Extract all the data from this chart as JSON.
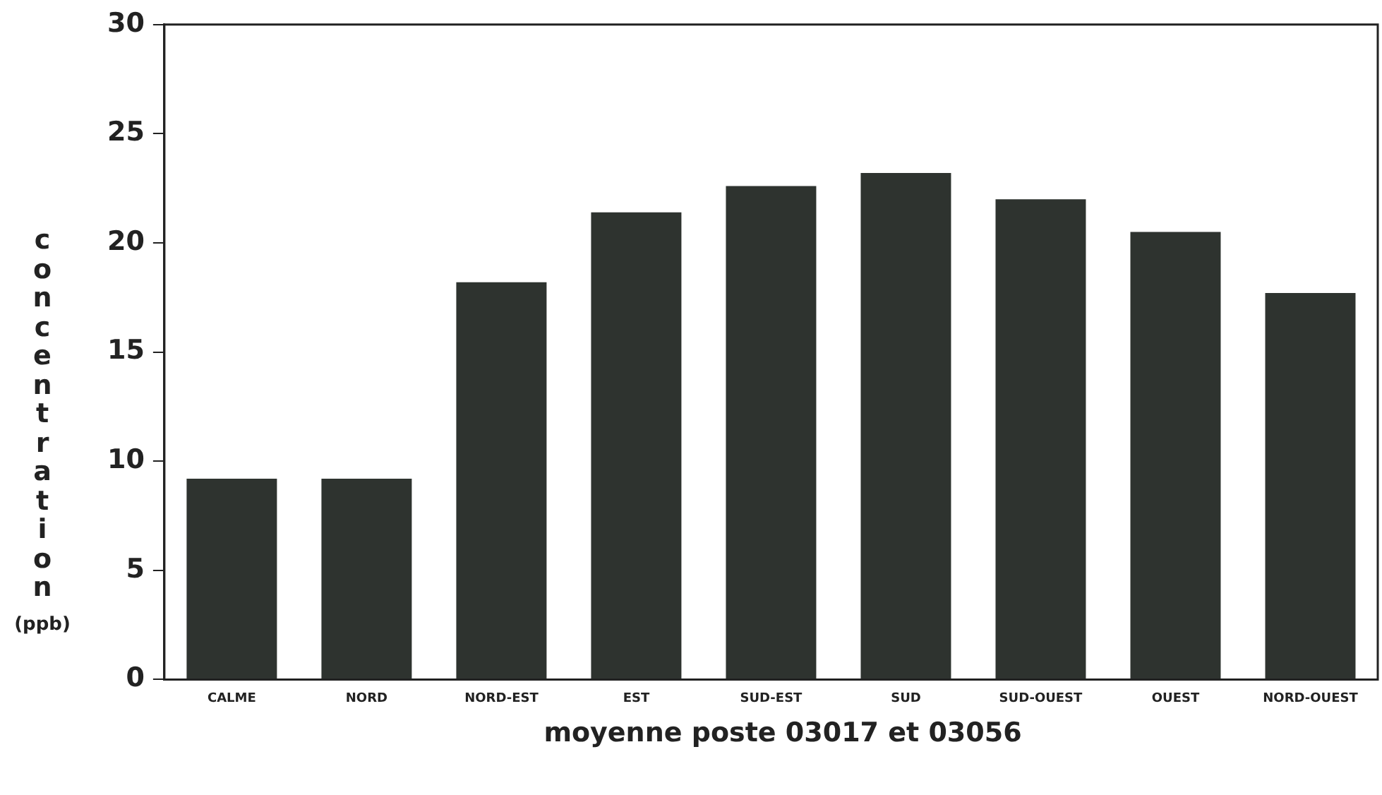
{
  "chart_data": {
    "type": "bar",
    "xlabel": "moyenne poste 03017 et 03056",
    "ylabel": "concentration (ppb)",
    "categories": [
      "CALME",
      "NORD",
      "NORD-EST",
      "EST",
      "SUD-EST",
      "SUD",
      "SUD-OUEST",
      "OUEST",
      "NORD-OUEST"
    ],
    "values": [
      9.2,
      9.2,
      18.2,
      21.4,
      22.6,
      23.2,
      22.0,
      20.5,
      17.7
    ],
    "color": "#2e332f",
    "ylim": [
      0,
      30
    ],
    "yticks": [
      0,
      5,
      10,
      15,
      20,
      25,
      30
    ],
    "grid": false,
    "legend": false
  }
}
